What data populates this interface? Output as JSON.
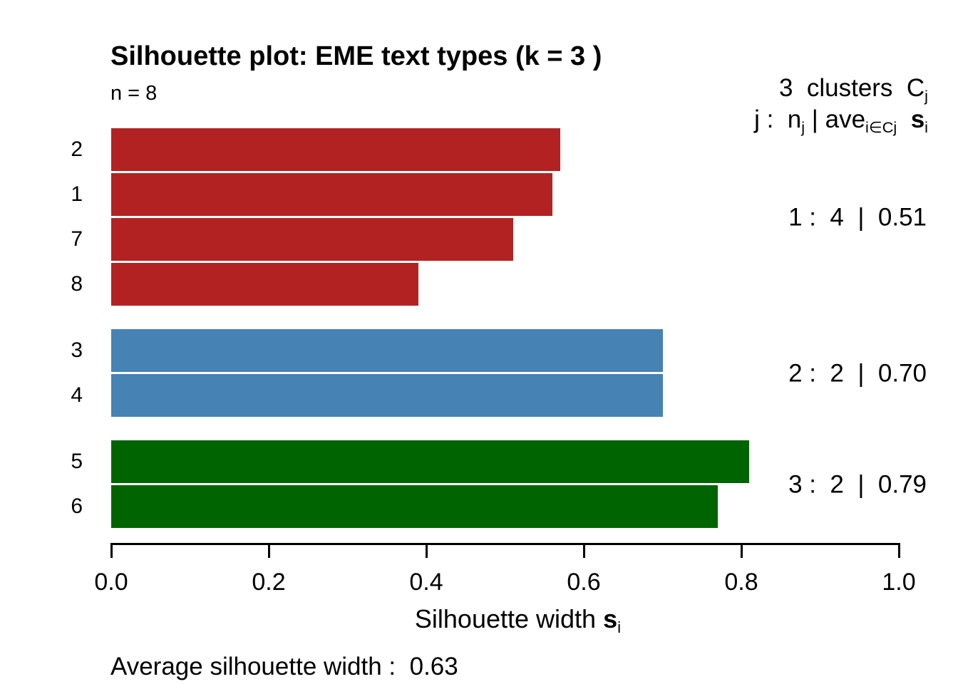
{
  "title": "Silhouette plot: EME text types (k = 3 )",
  "n_label": "n = 8",
  "legend": {
    "line1_main": "3  clusters  C",
    "line1_sub": "j",
    "line2_seg1": "j :  n",
    "line2_sub1": "j",
    "line2_seg2": " | ave",
    "line2_sub2": "i∈Cj",
    "line2_seg3": "  s",
    "line2_sub3": "i"
  },
  "x_axis": {
    "ticks": [
      "0.0",
      "0.2",
      "0.4",
      "0.6",
      "0.8",
      "1.0"
    ],
    "label_main": "Silhouette width ",
    "label_s": "s",
    "label_sub": "i"
  },
  "footer": {
    "average_label": "Average silhouette width :  0.63"
  },
  "chart_data": {
    "type": "bar",
    "orientation": "horizontal",
    "title": "Silhouette plot: EME text types (k = 3 )",
    "xlabel": "Silhouette width s_i",
    "xlim": [
      0,
      1
    ],
    "x_ticks": [
      0.0,
      0.2,
      0.4,
      0.6,
      0.8,
      1.0
    ],
    "n": 8,
    "grid": false,
    "bars": [
      {
        "label": "2",
        "cluster": 1,
        "value": 0.57
      },
      {
        "label": "1",
        "cluster": 1,
        "value": 0.56
      },
      {
        "label": "7",
        "cluster": 1,
        "value": 0.51
      },
      {
        "label": "8",
        "cluster": 1,
        "value": 0.39
      },
      {
        "label": "3",
        "cluster": 2,
        "value": 0.7
      },
      {
        "label": "4",
        "cluster": 2,
        "value": 0.7
      },
      {
        "label": "5",
        "cluster": 3,
        "value": 0.81
      },
      {
        "label": "6",
        "cluster": 3,
        "value": 0.77
      }
    ],
    "clusters": [
      {
        "j": 1,
        "size": 4,
        "avg_width": "0.51",
        "color": "#b22222",
        "display": "1 :  4  |  0.51"
      },
      {
        "j": 2,
        "size": 2,
        "avg_width": "0.70",
        "color": "#4682b4",
        "display": "2 :  2  |  0.70"
      },
      {
        "j": 3,
        "size": 2,
        "avg_width": "0.79",
        "color": "#006400",
        "display": "3 :  2  |  0.79"
      }
    ],
    "average_silhouette_width": 0.63
  }
}
